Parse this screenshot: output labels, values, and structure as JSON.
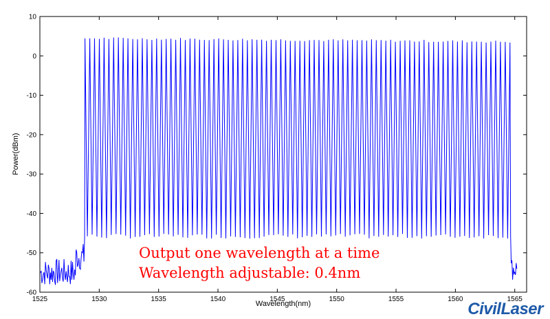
{
  "chart_data": {
    "type": "line",
    "xlabel": "Wavelength(nm)",
    "ylabel": "Power(dBm)",
    "xlim": [
      1525,
      1566
    ],
    "ylim": [
      -60,
      10
    ],
    "x_ticks": [
      1525,
      1530,
      1535,
      1540,
      1545,
      1550,
      1555,
      1560,
      1565
    ],
    "y_ticks": [
      10,
      0,
      -10,
      -20,
      -30,
      -40,
      -50,
      -60
    ],
    "grid": false,
    "series": [
      {
        "color": "#0000ff",
        "description": "comb of laser channels",
        "channel_start_nm": 1528.8,
        "channel_end_nm": 1564.6,
        "channel_count": 90,
        "peak_dbm": 4.5,
        "trough_dbm": -45.8,
        "noise_floor_dbm": -55
      }
    ],
    "annotations": [
      "Output one wavelength at a time",
      "Wavelength adjustable: 0.4nm"
    ]
  },
  "brand": {
    "logo_text": "CivilLaser"
  },
  "colors": {
    "trace": "#0000ff",
    "annotation": "#ff0000",
    "brand": "#1e5aa8"
  }
}
